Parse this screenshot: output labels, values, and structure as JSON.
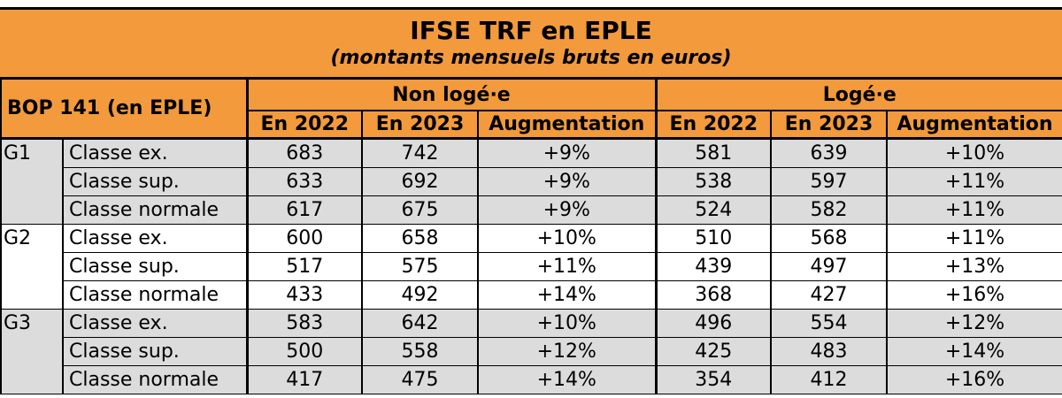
{
  "title": "IFSE TRF en EPLE",
  "subtitle": "(montants mensuels bruts en euros)",
  "header": {
    "bop": "BOP 141 (en EPLE)",
    "group_non_loge": "Non logé·e",
    "group_loge": "Logé·e",
    "col_2022": "En 2022",
    "col_2023": "En 2023",
    "col_aug": "Augmentation"
  },
  "rows": [
    {
      "grade": "G1",
      "classe": "Classe ex.",
      "nl2022": "683",
      "nl2023": "742",
      "nlaug": "+9%",
      "l2022": "581",
      "l2023": "639",
      "laug": "+10%"
    },
    {
      "grade": "",
      "classe": "Classe sup.",
      "nl2022": "633",
      "nl2023": "692",
      "nlaug": "+9%",
      "l2022": "538",
      "l2023": "597",
      "laug": "+11%"
    },
    {
      "grade": "",
      "classe": "Classe normale",
      "nl2022": "617",
      "nl2023": "675",
      "nlaug": "+9%",
      "l2022": "524",
      "l2023": "582",
      "laug": "+11%"
    },
    {
      "grade": "G2",
      "classe": "Classe ex.",
      "nl2022": "600",
      "nl2023": "658",
      "nlaug": "+10%",
      "l2022": "510",
      "l2023": "568",
      "laug": "+11%"
    },
    {
      "grade": "",
      "classe": "Classe sup.",
      "nl2022": "517",
      "nl2023": "575",
      "nlaug": "+11%",
      "l2022": "439",
      "l2023": "497",
      "laug": "+13%"
    },
    {
      "grade": "",
      "classe": "Classe normale",
      "nl2022": "433",
      "nl2023": "492",
      "nlaug": "+14%",
      "l2022": "368",
      "l2023": "427",
      "laug": "+16%"
    },
    {
      "grade": "G3",
      "classe": "Classe ex.",
      "nl2022": "583",
      "nl2023": "642",
      "nlaug": "+10%",
      "l2022": "496",
      "l2023": "554",
      "laug": "+12%"
    },
    {
      "grade": "",
      "classe": "Classe sup.",
      "nl2022": "500",
      "nl2023": "558",
      "nlaug": "+12%",
      "l2022": "425",
      "l2023": "483",
      "laug": "+14%"
    },
    {
      "grade": "",
      "classe": "Classe normale",
      "nl2022": "417",
      "nl2023": "475",
      "nlaug": "+14%",
      "l2022": "354",
      "l2023": "412",
      "laug": "+16%"
    }
  ],
  "colors": {
    "header_orange": "#f29a3c",
    "row_shade": "#dcdcdc"
  }
}
